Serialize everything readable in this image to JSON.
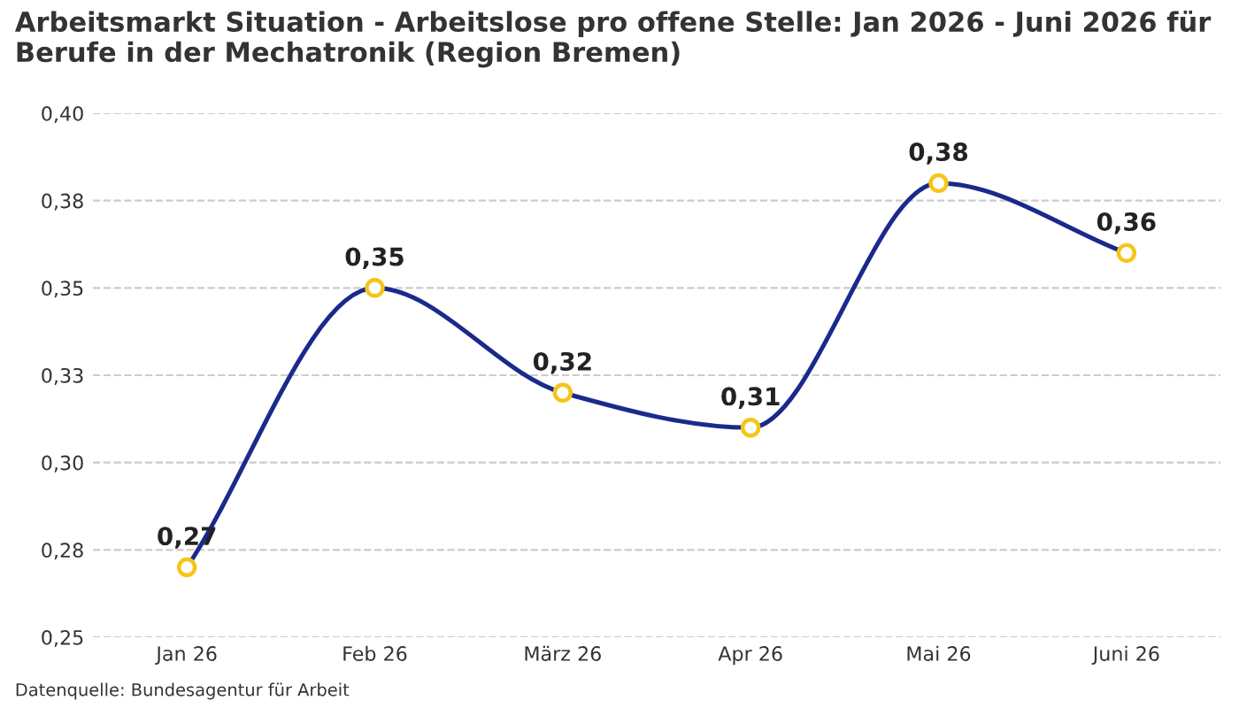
{
  "chart_data": {
    "type": "line",
    "title": "Arbeitsmarkt Situation - Arbeitslose pro offene Stelle: Jan 2026 - Juni 2026 für Berufe in der Mechatronik (Region Bremen)",
    "categories": [
      "Jan 26",
      "Feb 26",
      "März 26",
      "Apr 26",
      "Mai 26",
      "Juni 26"
    ],
    "series": [
      {
        "color": "#1a2a8c",
        "values": [
          0.27,
          0.35,
          0.32,
          0.31,
          0.38,
          0.36
        ],
        "value_labels": [
          "0,27",
          "0,35",
          "0,32",
          "0,31",
          "0,38",
          "0,36"
        ],
        "colors": [
          "#f5c518",
          "#f5c518",
          "#f5c518",
          "#f5c518",
          "#f5c518",
          "#f5c518"
        ]
      }
    ],
    "ylim": [
      0.25,
      0.4
    ],
    "yticks": [
      {
        "value": 0.25,
        "label": "0,25"
      },
      {
        "value": 0.275,
        "label": "0,28"
      },
      {
        "value": 0.3,
        "label": "0,30"
      },
      {
        "value": 0.325,
        "label": "0,33"
      },
      {
        "value": 0.35,
        "label": "0,35"
      },
      {
        "value": 0.375,
        "label": "0,38"
      },
      {
        "value": 0.4,
        "label": "0,40"
      }
    ],
    "grid": "y",
    "marker": "circle",
    "line_style": "solid",
    "annotations": [
      "Datenquelle: Bundesagentur für Arbeit"
    ]
  }
}
